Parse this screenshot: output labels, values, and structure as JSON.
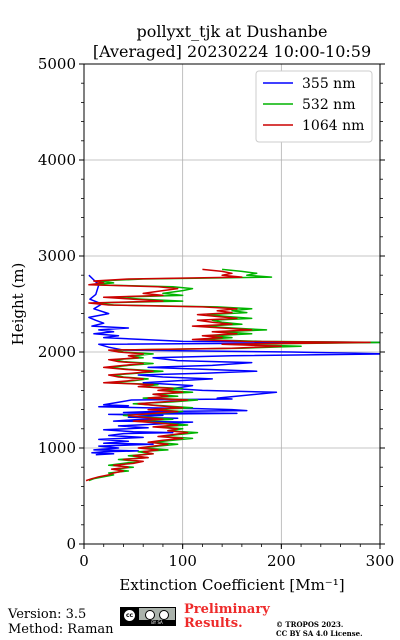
{
  "title": {
    "line1": "pollyxt_tjk at Dushanbe",
    "line2": "[Averaged] 20230224 10:00-10:59"
  },
  "footer": {
    "version": "Version: 3.5",
    "method": "Method: Raman",
    "preliminary_line1": "Preliminary",
    "preliminary_line2": "Results.",
    "copyright_line1": "© TROPOS 2023.",
    "copyright_line2": "CC BY SA 4.0 License.",
    "license_icon": "cc-by-sa-icon"
  },
  "chart_data": {
    "type": "line",
    "xlabel": "Extinction Coefficient [Mm⁻¹]",
    "ylabel": "Height (m)",
    "xlim": [
      0,
      300
    ],
    "ylim": [
      0,
      5000
    ],
    "xticks": [
      0,
      100,
      200,
      300
    ],
    "yticks": [
      0,
      1000,
      2000,
      3000,
      4000,
      5000
    ],
    "grid": true,
    "legend_position": "top-right",
    "series": [
      {
        "name": "355 nm",
        "color": "#0000ff",
        "points": [
          [
            20,
            1450
          ],
          [
            45,
            1440
          ],
          [
            15,
            1430
          ],
          [
            60,
            1420
          ],
          [
            115,
            1410
          ],
          [
            150,
            1400
          ],
          [
            165,
            1390
          ],
          [
            70,
            1380
          ],
          [
            40,
            1370
          ],
          [
            155,
            1360
          ],
          [
            25,
            1350
          ],
          [
            80,
            1340
          ],
          [
            45,
            1320
          ],
          [
            95,
            1310
          ],
          [
            60,
            1300
          ],
          [
            30,
            1280
          ],
          [
            110,
            1270
          ],
          [
            75,
            1250
          ],
          [
            35,
            1230
          ],
          [
            65,
            1210
          ],
          [
            20,
            1190
          ],
          [
            50,
            1170
          ],
          [
            90,
            1160
          ],
          [
            40,
            1150
          ],
          [
            25,
            1130
          ],
          [
            60,
            1110
          ],
          [
            15,
            1090
          ],
          [
            45,
            1070
          ],
          [
            20,
            1050
          ],
          [
            70,
            1040
          ],
          [
            15,
            1020
          ],
          [
            35,
            1000
          ],
          [
            10,
            980
          ],
          [
            55,
            970
          ],
          [
            20,
            960
          ],
          [
            8,
            950
          ],
          [
            30,
            940
          ],
          [
            12,
            930
          ],
          [
            48,
            1500
          ],
          [
            150,
            1510
          ],
          [
            135,
            1520
          ],
          [
            195,
            1580
          ],
          [
            120,
            1600
          ],
          [
            90,
            1620
          ],
          [
            110,
            1650
          ],
          [
            60,
            1680
          ],
          [
            95,
            1700
          ],
          [
            130,
            1720
          ],
          [
            80,
            1740
          ],
          [
            55,
            1760
          ],
          [
            125,
            1780
          ],
          [
            175,
            1800
          ],
          [
            120,
            1820
          ],
          [
            65,
            1840
          ],
          [
            130,
            1860
          ],
          [
            170,
            1890
          ],
          [
            95,
            1910
          ],
          [
            70,
            1940
          ],
          [
            150,
            1960
          ],
          [
            310,
            1980
          ],
          [
            210,
            2000
          ],
          [
            40,
            2020
          ],
          [
            25,
            2050
          ],
          [
            15,
            2080
          ],
          [
            300,
            2100
          ],
          [
            100,
            2110
          ],
          [
            60,
            2130
          ],
          [
            20,
            2150
          ],
          [
            35,
            2170
          ],
          [
            10,
            2190
          ],
          [
            30,
            2210
          ],
          [
            15,
            2230
          ],
          [
            45,
            2250
          ],
          [
            8,
            2270
          ],
          [
            20,
            2300
          ],
          [
            12,
            2330
          ],
          [
            5,
            2360
          ],
          [
            25,
            2400
          ],
          [
            10,
            2450
          ],
          [
            18,
            2500
          ],
          [
            6,
            2550
          ],
          [
            12,
            2600
          ],
          [
            15,
            2700
          ],
          [
            10,
            2750
          ],
          [
            5,
            2800
          ]
        ]
      },
      {
        "name": "532 nm",
        "color": "#00b400",
        "points": [
          [
            5,
            660
          ],
          [
            10,
            680
          ],
          [
            20,
            700
          ],
          [
            30,
            720
          ],
          [
            25,
            740
          ],
          [
            45,
            760
          ],
          [
            30,
            780
          ],
          [
            50,
            800
          ],
          [
            25,
            820
          ],
          [
            40,
            840
          ],
          [
            55,
            860
          ],
          [
            35,
            880
          ],
          [
            65,
            900
          ],
          [
            45,
            920
          ],
          [
            70,
            940
          ],
          [
            55,
            960
          ],
          [
            85,
            980
          ],
          [
            60,
            1000
          ],
          [
            75,
            1020
          ],
          [
            95,
            1040
          ],
          [
            70,
            1060
          ],
          [
            90,
            1080
          ],
          [
            110,
            1100
          ],
          [
            80,
            1120
          ],
          [
            95,
            1140
          ],
          [
            115,
            1160
          ],
          [
            85,
            1180
          ],
          [
            100,
            1200
          ],
          [
            75,
            1220
          ],
          [
            105,
            1240
          ],
          [
            80,
            1260
          ],
          [
            55,
            1280
          ],
          [
            90,
            1300
          ],
          [
            65,
            1320
          ],
          [
            40,
            1340
          ],
          [
            75,
            1360
          ],
          [
            100,
            1380
          ],
          [
            70,
            1400
          ],
          [
            110,
            1420
          ],
          [
            80,
            1440
          ],
          [
            50,
            1460
          ],
          [
            90,
            1480
          ],
          [
            115,
            1500
          ],
          [
            60,
            1520
          ],
          [
            95,
            1540
          ],
          [
            70,
            1560
          ],
          [
            110,
            1580
          ],
          [
            80,
            1600
          ],
          [
            100,
            1620
          ],
          [
            60,
            1640
          ],
          [
            75,
            1660
          ],
          [
            25,
            1680
          ],
          [
            50,
            1700
          ],
          [
            65,
            1720
          ],
          [
            40,
            1740
          ],
          [
            30,
            1760
          ],
          [
            55,
            1780
          ],
          [
            80,
            1800
          ],
          [
            45,
            1820
          ],
          [
            25,
            1840
          ],
          [
            45,
            1860
          ],
          [
            70,
            1880
          ],
          [
            40,
            1900
          ],
          [
            30,
            1920
          ],
          [
            60,
            1940
          ],
          [
            50,
            1960
          ],
          [
            70,
            1980
          ],
          [
            40,
            2000
          ],
          [
            30,
            2020
          ],
          [
            160,
            2040
          ],
          [
            220,
            2060
          ],
          [
            150,
            2080
          ],
          [
            310,
            2100
          ],
          [
            180,
            2110
          ],
          [
            120,
            2130
          ],
          [
            150,
            2150
          ],
          [
            130,
            2170
          ],
          [
            170,
            2190
          ],
          [
            140,
            2210
          ],
          [
            185,
            2230
          ],
          [
            150,
            2250
          ],
          [
            120,
            2270
          ],
          [
            160,
            2290
          ],
          [
            140,
            2310
          ],
          [
            130,
            2330
          ],
          [
            170,
            2350
          ],
          [
            145,
            2370
          ],
          [
            125,
            2390
          ],
          [
            165,
            2410
          ],
          [
            150,
            2430
          ],
          [
            170,
            2450
          ],
          [
            135,
            2470
          ],
          [
            30,
            2490
          ],
          [
            10,
            2510
          ],
          [
            100,
            2530
          ],
          [
            60,
            2550
          ],
          [
            30,
            2570
          ],
          [
            100,
            2590
          ],
          [
            80,
            2610
          ],
          [
            100,
            2640
          ],
          [
            110,
            2660
          ],
          [
            90,
            2680
          ],
          [
            10,
            2700
          ],
          [
            30,
            2720
          ],
          [
            15,
            2740
          ],
          [
            60,
            2760
          ],
          [
            190,
            2780
          ],
          [
            165,
            2800
          ],
          [
            175,
            2820
          ],
          [
            160,
            2840
          ],
          [
            140,
            2860
          ]
        ]
      },
      {
        "name": "1064 nm",
        "color": "#cc0000",
        "points": [
          [
            2,
            660
          ],
          [
            8,
            680
          ],
          [
            15,
            700
          ],
          [
            25,
            720
          ],
          [
            30,
            740
          ],
          [
            40,
            760
          ],
          [
            28,
            780
          ],
          [
            45,
            800
          ],
          [
            30,
            820
          ],
          [
            50,
            840
          ],
          [
            60,
            860
          ],
          [
            40,
            880
          ],
          [
            65,
            900
          ],
          [
            50,
            920
          ],
          [
            70,
            940
          ],
          [
            60,
            960
          ],
          [
            75,
            980
          ],
          [
            55,
            1000
          ],
          [
            70,
            1020
          ],
          [
            85,
            1040
          ],
          [
            65,
            1060
          ],
          [
            80,
            1080
          ],
          [
            100,
            1100
          ],
          [
            75,
            1120
          ],
          [
            90,
            1140
          ],
          [
            105,
            1160
          ],
          [
            85,
            1180
          ],
          [
            95,
            1200
          ],
          [
            70,
            1220
          ],
          [
            95,
            1240
          ],
          [
            75,
            1260
          ],
          [
            50,
            1280
          ],
          [
            80,
            1300
          ],
          [
            60,
            1320
          ],
          [
            45,
            1340
          ],
          [
            70,
            1360
          ],
          [
            95,
            1380
          ],
          [
            65,
            1400
          ],
          [
            100,
            1420
          ],
          [
            75,
            1440
          ],
          [
            55,
            1460
          ],
          [
            80,
            1480
          ],
          [
            105,
            1500
          ],
          [
            65,
            1520
          ],
          [
            85,
            1540
          ],
          [
            70,
            1560
          ],
          [
            100,
            1580
          ],
          [
            75,
            1600
          ],
          [
            90,
            1620
          ],
          [
            55,
            1640
          ],
          [
            70,
            1660
          ],
          [
            20,
            1680
          ],
          [
            45,
            1700
          ],
          [
            60,
            1720
          ],
          [
            35,
            1740
          ],
          [
            25,
            1760
          ],
          [
            50,
            1780
          ],
          [
            70,
            1800
          ],
          [
            40,
            1820
          ],
          [
            20,
            1840
          ],
          [
            40,
            1860
          ],
          [
            60,
            1880
          ],
          [
            35,
            1900
          ],
          [
            25,
            1920
          ],
          [
            55,
            1940
          ],
          [
            45,
            1960
          ],
          [
            60,
            1980
          ],
          [
            35,
            2000
          ],
          [
            25,
            2020
          ],
          [
            150,
            2040
          ],
          [
            200,
            2060
          ],
          [
            140,
            2080
          ],
          [
            290,
            2100
          ],
          [
            165,
            2110
          ],
          [
            110,
            2130
          ],
          [
            140,
            2150
          ],
          [
            120,
            2170
          ],
          [
            155,
            2190
          ],
          [
            130,
            2210
          ],
          [
            170,
            2230
          ],
          [
            140,
            2250
          ],
          [
            110,
            2270
          ],
          [
            150,
            2290
          ],
          [
            130,
            2310
          ],
          [
            115,
            2330
          ],
          [
            155,
            2350
          ],
          [
            135,
            2370
          ],
          [
            115,
            2390
          ],
          [
            150,
            2410
          ],
          [
            135,
            2430
          ],
          [
            155,
            2450
          ],
          [
            120,
            2470
          ],
          [
            25,
            2490
          ],
          [
            5,
            2510
          ],
          [
            80,
            2530
          ],
          [
            50,
            2550
          ],
          [
            20,
            2570
          ],
          [
            80,
            2590
          ],
          [
            60,
            2610
          ],
          [
            80,
            2640
          ],
          [
            95,
            2660
          ],
          [
            75,
            2680
          ],
          [
            5,
            2700
          ],
          [
            20,
            2720
          ],
          [
            10,
            2740
          ],
          [
            45,
            2760
          ],
          [
            160,
            2780
          ],
          [
            140,
            2800
          ],
          [
            150,
            2820
          ],
          [
            140,
            2840
          ],
          [
            120,
            2860
          ]
        ]
      }
    ]
  }
}
